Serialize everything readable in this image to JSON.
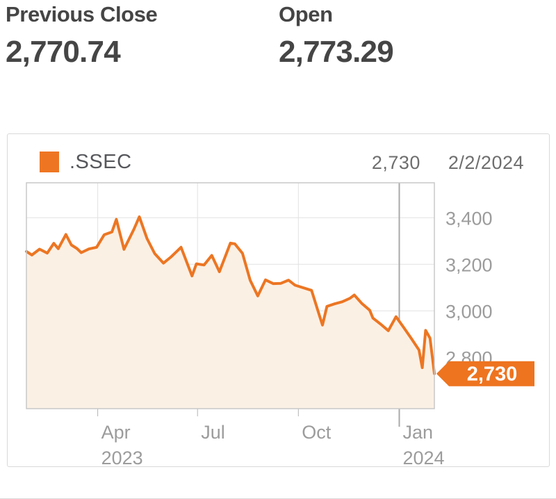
{
  "stats": {
    "previous_close": {
      "label": "Previous Close",
      "value": "2,770.74"
    },
    "open": {
      "label": "Open",
      "value": "2,773.29"
    }
  },
  "chart": {
    "legend": {
      "symbol": ".SSEC",
      "swatch_color": "#EE7623"
    },
    "readout": {
      "value": "2,730",
      "date": "2/2/2024"
    }
  },
  "chart_data": {
    "type": "area",
    "symbol": ".SSEC",
    "x_range": [
      "2023-01-26",
      "2024-02-02"
    ],
    "ylim": [
      2580,
      3550
    ],
    "grid": true,
    "legend_position": "top-left",
    "y_axis_side": "right",
    "y_ticks": [
      {
        "value": 3400,
        "label": "3,400"
      },
      {
        "value": 3200,
        "label": "3,200"
      },
      {
        "value": 3000,
        "label": "3,000"
      },
      {
        "value": 2800,
        "label": "2,800"
      }
    ],
    "x_ticks": [
      {
        "date": "2023-04-01",
        "lines": [
          "Apr",
          "2023"
        ],
        "year_boundary": false
      },
      {
        "date": "2023-07-01",
        "lines": [
          "Jul"
        ],
        "year_boundary": false
      },
      {
        "date": "2023-10-01",
        "lines": [
          "Oct"
        ],
        "year_boundary": false
      },
      {
        "date": "2024-01-01",
        "lines": [
          "Jan",
          "2024"
        ],
        "year_boundary": true
      }
    ],
    "last_point": {
      "date": "2/2/2024",
      "value": 2730,
      "label": "2,730"
    },
    "series": [
      {
        "name": ".SSEC",
        "points": [
          [
            "2023-01-26",
            3255
          ],
          [
            "2023-01-31",
            3240
          ],
          [
            "2023-02-07",
            3265
          ],
          [
            "2023-02-14",
            3248
          ],
          [
            "2023-02-20",
            3290
          ],
          [
            "2023-02-24",
            3267
          ],
          [
            "2023-03-03",
            3328
          ],
          [
            "2023-03-08",
            3283
          ],
          [
            "2023-03-13",
            3268
          ],
          [
            "2023-03-17",
            3250
          ],
          [
            "2023-03-24",
            3266
          ],
          [
            "2023-03-31",
            3273
          ],
          [
            "2023-04-07",
            3327
          ],
          [
            "2023-04-14",
            3339
          ],
          [
            "2023-04-18",
            3393
          ],
          [
            "2023-04-25",
            3264
          ],
          [
            "2023-05-04",
            3350
          ],
          [
            "2023-05-09",
            3404
          ],
          [
            "2023-05-16",
            3310
          ],
          [
            "2023-05-23",
            3246
          ],
          [
            "2023-05-31",
            3205
          ],
          [
            "2023-06-07",
            3232
          ],
          [
            "2023-06-16",
            3273
          ],
          [
            "2023-06-26",
            3150
          ],
          [
            "2023-06-30",
            3202
          ],
          [
            "2023-07-07",
            3197
          ],
          [
            "2023-07-14",
            3238
          ],
          [
            "2023-07-21",
            3168
          ],
          [
            "2023-07-31",
            3291
          ],
          [
            "2023-08-04",
            3288
          ],
          [
            "2023-08-11",
            3247
          ],
          [
            "2023-08-18",
            3132
          ],
          [
            "2023-08-25",
            3064
          ],
          [
            "2023-09-01",
            3133
          ],
          [
            "2023-09-08",
            3117
          ],
          [
            "2023-09-15",
            3118
          ],
          [
            "2023-09-22",
            3132
          ],
          [
            "2023-09-28",
            3110
          ],
          [
            "2023-10-13",
            3088
          ],
          [
            "2023-10-20",
            2983
          ],
          [
            "2023-10-23",
            2939
          ],
          [
            "2023-10-27",
            3019
          ],
          [
            "2023-11-03",
            3030
          ],
          [
            "2023-11-10",
            3039
          ],
          [
            "2023-11-17",
            3054
          ],
          [
            "2023-11-21",
            3068
          ],
          [
            "2023-11-28",
            3031
          ],
          [
            "2023-12-05",
            3003
          ],
          [
            "2023-12-08",
            2969
          ],
          [
            "2023-12-15",
            2943
          ],
          [
            "2023-12-22",
            2915
          ],
          [
            "2023-12-29",
            2975
          ],
          [
            "2024-01-05",
            2929
          ],
          [
            "2024-01-12",
            2881
          ],
          [
            "2024-01-19",
            2832
          ],
          [
            "2024-01-22",
            2756
          ],
          [
            "2024-01-25",
            2916
          ],
          [
            "2024-01-29",
            2883
          ],
          [
            "2024-02-01",
            2770
          ],
          [
            "2024-02-02",
            2730
          ]
        ]
      }
    ],
    "colors": {
      "line": "#EC7623",
      "area": "#FBF0E4",
      "grid": "#E1E1E1",
      "year_line": "#A9A9A9",
      "tick": "#B3B3B3",
      "border": "#C8C8C8",
      "axis_text": "#9C9C9C",
      "tag_bg": "#EE7420",
      "tag_text": "#FFFFFF"
    }
  }
}
